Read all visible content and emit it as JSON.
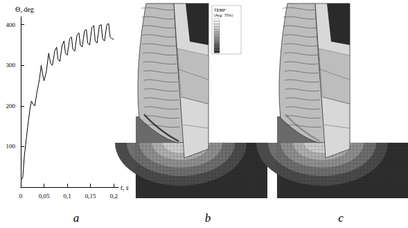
{
  "chart_data": {
    "type": "line",
    "x_label": "t, s",
    "y_label": "Θ, deg",
    "x": [
      0,
      0.004,
      0.008,
      0.015,
      0.02,
      0.023,
      0.026,
      0.03,
      0.035,
      0.04,
      0.044,
      0.047,
      0.05,
      0.055,
      0.06,
      0.064,
      0.068,
      0.073,
      0.077,
      0.08,
      0.084,
      0.089,
      0.093,
      0.096,
      0.1,
      0.105,
      0.109,
      0.112,
      0.116,
      0.121,
      0.125,
      0.128,
      0.132,
      0.137,
      0.141,
      0.144,
      0.148,
      0.153,
      0.157,
      0.16,
      0.164,
      0.169,
      0.173,
      0.176,
      0.18,
      0.185,
      0.189,
      0.192,
      0.196,
      0.2
    ],
    "values": [
      20,
      22,
      80,
      150,
      195,
      212,
      205,
      200,
      235,
      265,
      300,
      278,
      262,
      285,
      330,
      305,
      300,
      335,
      345,
      315,
      310,
      350,
      360,
      330,
      325,
      365,
      370,
      340,
      335,
      375,
      380,
      350,
      345,
      385,
      388,
      355,
      350,
      393,
      398,
      360,
      355,
      398,
      400,
      365,
      360,
      400,
      403,
      370,
      365,
      365
    ],
    "color": "#000000",
    "xlim": [
      0,
      0.21
    ],
    "xticks": [
      0,
      {
        "value": 0.05,
        "label": "0,05"
      },
      {
        "value": 0.1,
        "label": "0,1"
      },
      {
        "value": 0.15,
        "label": "0,15"
      },
      {
        "value": 0.2,
        "label": "0,2"
      }
    ],
    "ylim": [
      0,
      420
    ],
    "yticks": [
      100,
      200,
      300,
      400
    ],
    "grid": false
  },
  "panels": [
    "a",
    "b",
    "c"
  ],
  "contour_legend": {
    "title": "TEMP",
    "subtitle": "(Avg: 75%)"
  }
}
